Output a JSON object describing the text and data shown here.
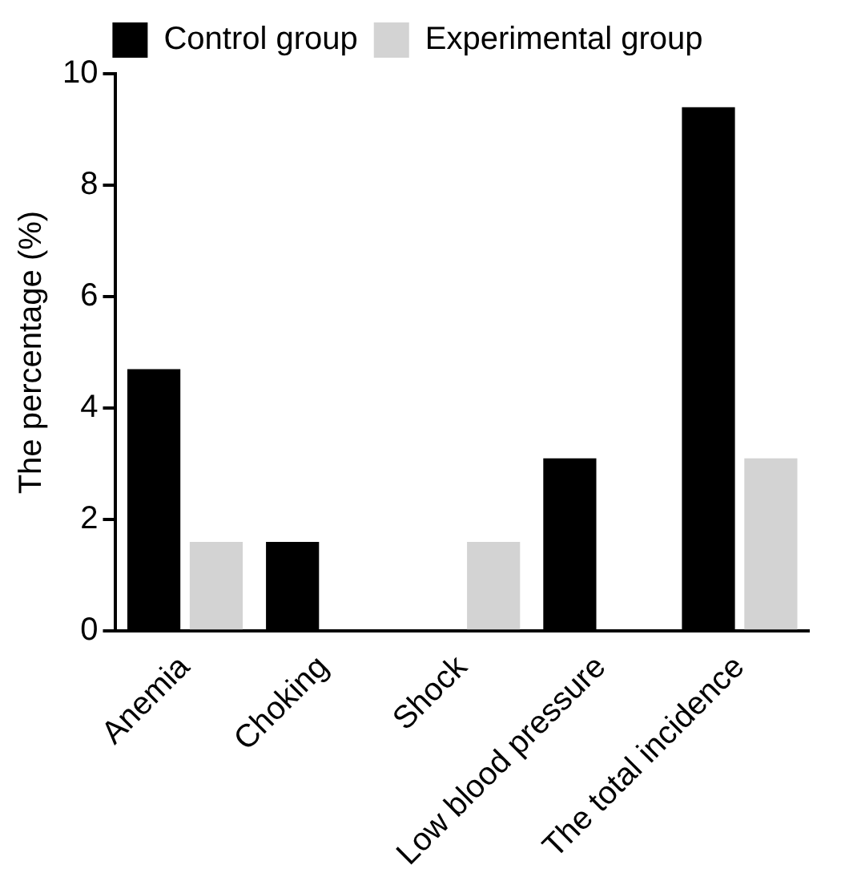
{
  "chart_data": {
    "type": "bar",
    "ylabel": "The percentage (%)",
    "categories": [
      "Anemia",
      "Choking",
      "Shock",
      "Low blood pressure",
      "The total incidence"
    ],
    "series": [
      {
        "name": "Control group",
        "color": "#000000",
        "values": [
          4.7,
          1.6,
          0,
          3.1,
          9.4
        ]
      },
      {
        "name": "Experimental group",
        "color": "#d3d3d3",
        "values": [
          1.6,
          0,
          1.6,
          0,
          3.1
        ]
      }
    ],
    "ylim": [
      0,
      10
    ],
    "yticks": [
      0,
      2,
      4,
      6,
      8,
      10
    ],
    "grid": false,
    "legend": "top"
  }
}
